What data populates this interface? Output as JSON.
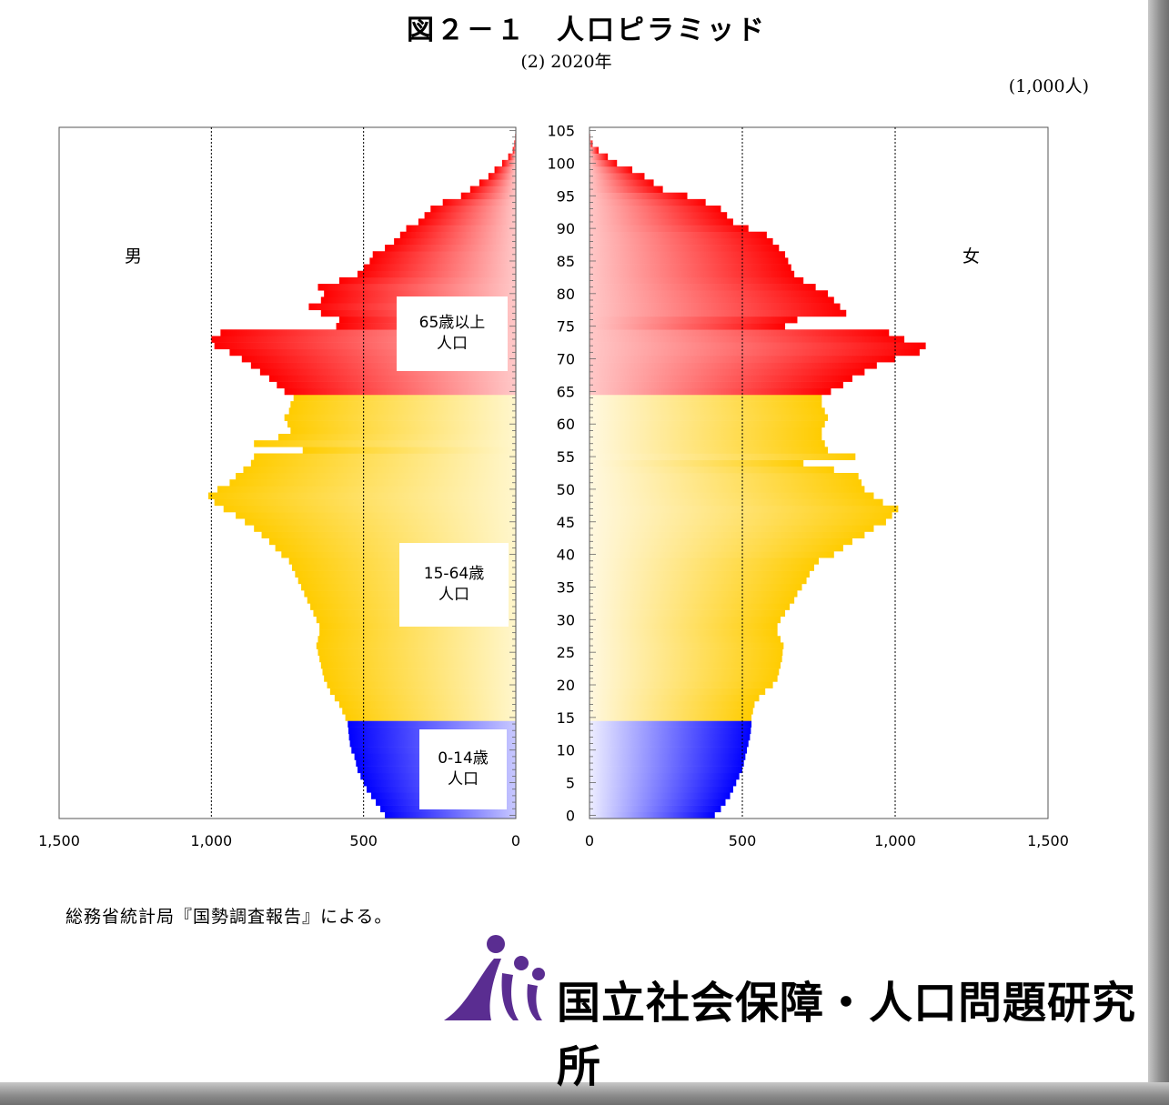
{
  "title": "図２－１　人口ピラミッド",
  "subtitle": "(2) 2020年",
  "unit": "(1,000人)",
  "source": "総務省統計局『国勢調査報告』による。",
  "logo_text": "国立社会保障・人口問題研究所",
  "chart_data": {
    "type": "bar",
    "orientation": "horizontal-pyramid",
    "x_ticks": [
      "1,500",
      "1,000",
      "500",
      "0"
    ],
    "x_ticks_right": [
      "0",
      "500",
      "1,000",
      "1,500"
    ],
    "y_ticks": [
      "105",
      "100",
      "95",
      "90",
      "85",
      "80",
      "75",
      "70",
      "65",
      "60",
      "55",
      "50",
      "45",
      "40",
      "35",
      "30",
      "25",
      "20",
      "15",
      "10",
      "5",
      "0"
    ],
    "xlim": [
      0,
      1500
    ],
    "ylim": [
      0,
      105
    ],
    "side_labels": {
      "male": "男",
      "female": "女"
    },
    "segments": [
      {
        "line1": "65歳以上",
        "line2": "人口",
        "min_age": 65,
        "max_age": 105
      },
      {
        "line1": "15-64歳",
        "line2": "人口",
        "min_age": 15,
        "max_age": 64
      },
      {
        "line1": "0-14歳",
        "line2": "人口",
        "min_age": 0,
        "max_age": 14
      }
    ],
    "colors": {
      "old": "#ff0000",
      "working": "#ffcc00",
      "young": "#0000ff"
    },
    "ages": [
      0,
      1,
      2,
      3,
      4,
      5,
      6,
      7,
      8,
      9,
      10,
      11,
      12,
      13,
      14,
      15,
      16,
      17,
      18,
      19,
      20,
      21,
      22,
      23,
      24,
      25,
      26,
      27,
      28,
      29,
      30,
      31,
      32,
      33,
      34,
      35,
      36,
      37,
      38,
      39,
      40,
      41,
      42,
      43,
      44,
      45,
      46,
      47,
      48,
      49,
      50,
      51,
      52,
      53,
      54,
      55,
      56,
      57,
      58,
      59,
      60,
      61,
      62,
      63,
      64,
      65,
      66,
      67,
      68,
      69,
      70,
      71,
      72,
      73,
      74,
      75,
      76,
      77,
      78,
      79,
      80,
      81,
      82,
      83,
      84,
      85,
      86,
      87,
      88,
      89,
      90,
      91,
      92,
      93,
      94,
      95,
      96,
      97,
      98,
      99,
      100,
      101,
      102,
      103,
      104,
      105
    ],
    "male": [
      430,
      445,
      460,
      475,
      490,
      500,
      510,
      520,
      525,
      530,
      540,
      545,
      548,
      550,
      552,
      560,
      570,
      580,
      595,
      610,
      620,
      630,
      635,
      640,
      645,
      650,
      655,
      650,
      645,
      645,
      655,
      665,
      675,
      685,
      695,
      705,
      715,
      725,
      735,
      745,
      770,
      790,
      810,
      835,
      860,
      890,
      920,
      960,
      990,
      1010,
      980,
      940,
      920,
      895,
      870,
      860,
      700,
      860,
      780,
      740,
      750,
      760,
      745,
      740,
      730,
      760,
      785,
      810,
      840,
      870,
      900,
      940,
      990,
      1000,
      970,
      590,
      580,
      640,
      680,
      640,
      630,
      650,
      580,
      520,
      500,
      480,
      470,
      430,
      400,
      380,
      360,
      320,
      300,
      280,
      240,
      180,
      150,
      120,
      90,
      70,
      45,
      25,
      10,
      5,
      2,
      0
    ],
    "female": [
      410,
      430,
      445,
      460,
      470,
      480,
      490,
      500,
      505,
      510,
      515,
      520,
      525,
      528,
      530,
      530,
      535,
      540,
      555,
      575,
      600,
      615,
      620,
      625,
      630,
      632,
      635,
      625,
      615,
      615,
      625,
      640,
      655,
      670,
      680,
      695,
      710,
      720,
      735,
      750,
      800,
      830,
      860,
      900,
      930,
      970,
      990,
      1010,
      960,
      930,
      900,
      890,
      880,
      800,
      700,
      870,
      780,
      770,
      760,
      760,
      770,
      780,
      770,
      760,
      760,
      790,
      830,
      860,
      900,
      940,
      1000,
      1080,
      1100,
      1030,
      980,
      640,
      680,
      840,
      820,
      800,
      780,
      740,
      700,
      670,
      660,
      650,
      640,
      620,
      600,
      580,
      520,
      470,
      450,
      430,
      380,
      320,
      240,
      210,
      180,
      140,
      90,
      60,
      30,
      10,
      2,
      0
    ]
  }
}
